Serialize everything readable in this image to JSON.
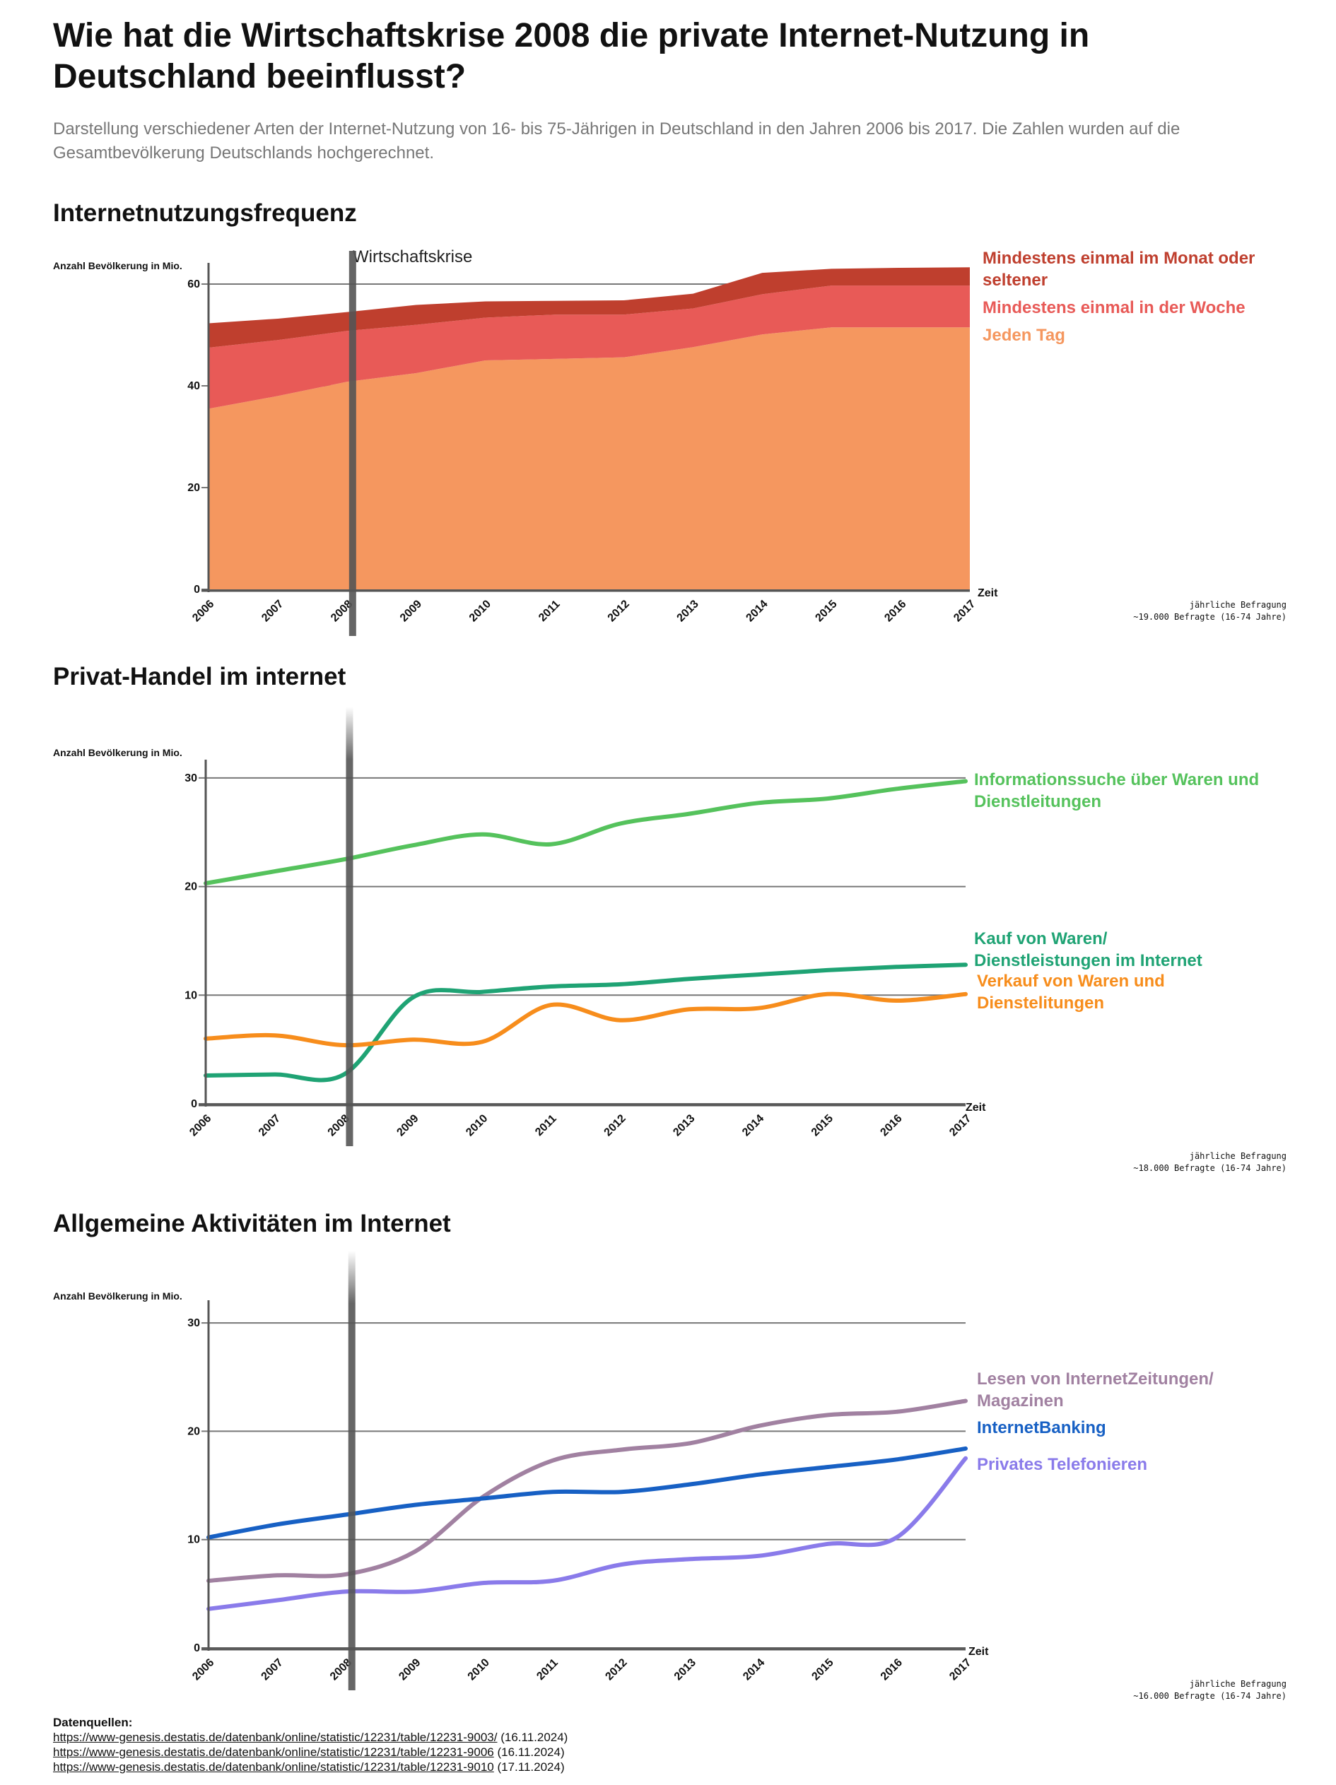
{
  "header": {
    "title": "Wie hat die Wirtschaftskrise 2008 die private Internet-Nutzung in Deutschland beeinflusst?",
    "subtitle": "Darstellung verschiedener Arten der Internet-Nutzung von 16- bis 75-Jährigen in Deutschland in den Jahren 2006 bis 2017. Die Zahlen wurden auf die Gesamtbevölkerung Deutschlands hochgerechnet."
  },
  "crisis": {
    "label": "Wirtschaftskrise",
    "year": 2008,
    "color": "#555555"
  },
  "chart_data": [
    {
      "type": "area",
      "title": "Internetnutzungsfrequenz",
      "ylabel": "Anzahl Bevölkerung in Mio.",
      "xlabel": "Zeit",
      "x": [
        2006,
        2007,
        2008,
        2009,
        2010,
        2011,
        2012,
        2013,
        2014,
        2015,
        2016,
        2017
      ],
      "ylim": [
        0,
        65
      ],
      "yticks": [
        0,
        20,
        40,
        60
      ],
      "grid": true,
      "stacked": true,
      "series": [
        {
          "name": "Jeden Tag",
          "color": "#f5975f",
          "values": [
            35.5,
            38,
            40.8,
            42.5,
            45,
            45.3,
            45.6,
            47.6,
            50.1,
            51.5,
            51.5,
            51.5
          ]
        },
        {
          "name": "Mindestens einmal in der Woche",
          "color": "#e85a57",
          "values": [
            12,
            11,
            10,
            9.5,
            8.4,
            8.7,
            8.4,
            7.6,
            7.9,
            8.2,
            8.2,
            8.2
          ]
        },
        {
          "name": "Mindestens einmal im Monat oder seltener",
          "color": "#bf3f2e",
          "values": [
            4.8,
            4.2,
            3.7,
            3.9,
            3.2,
            2.7,
            2.8,
            2.9,
            4.2,
            3.3,
            3.5,
            3.6
          ]
        }
      ],
      "note": [
        "jährliche Befragung",
        "~19.000 Befragte (16-74 Jahre)"
      ]
    },
    {
      "type": "line",
      "title": "Privat-Handel im internet",
      "ylabel": "Anzahl Bevölkerung in Mio.",
      "xlabel": "Zeit",
      "x": [
        2006,
        2007,
        2008,
        2009,
        2010,
        2011,
        2012,
        2013,
        2014,
        2015,
        2016,
        2017
      ],
      "ylim": [
        0,
        30
      ],
      "yticks": [
        0,
        10,
        20,
        30
      ],
      "grid": true,
      "series": [
        {
          "name": "Informationssuche über Waren und Dienstleitungen",
          "color": "#55c25c",
          "values": [
            20.3,
            21.4,
            22.5,
            23.8,
            24.8,
            23.9,
            25.8,
            26.7,
            27.7,
            28.1,
            29,
            29.7
          ]
        },
        {
          "name": "Kauf von Waren/ Dienstleistungen im Internet",
          "color": "#1fa374",
          "values": [
            2.6,
            2.7,
            2.7,
            9.8,
            10.3,
            10.8,
            11,
            11.5,
            11.9,
            12.3,
            12.6,
            12.8
          ]
        },
        {
          "name": "Verkauf von Waren und Dienstelitungen",
          "color": "#f78d1c",
          "values": [
            6,
            6.3,
            5.4,
            5.9,
            5.7,
            9.1,
            7.7,
            8.7,
            8.8,
            10.1,
            9.5,
            10.1
          ]
        }
      ],
      "note": [
        "jährliche Befragung",
        "~18.000 Befragte (16-74 Jahre)"
      ]
    },
    {
      "type": "line",
      "title": "Allgemeine Aktivitäten im Internet",
      "ylabel": "Anzahl Bevölkerung in Mio.",
      "xlabel": "Zeit",
      "x": [
        2006,
        2007,
        2008,
        2009,
        2010,
        2011,
        2012,
        2013,
        2014,
        2015,
        2016,
        2017
      ],
      "ylim": [
        0,
        30
      ],
      "yticks": [
        0,
        10,
        20,
        30
      ],
      "grid": true,
      "series": [
        {
          "name": "Lesen von InternetZeitungen/ Magazinen",
          "color": "#a181a1",
          "values": [
            6.2,
            6.7,
            6.8,
            8.9,
            14,
            17.3,
            18.3,
            18.9,
            20.5,
            21.5,
            21.8,
            22.8
          ]
        },
        {
          "name": "InternetBanking",
          "color": "#1760c4",
          "values": [
            10.2,
            11.4,
            12.3,
            13.2,
            13.8,
            14.4,
            14.4,
            15.1,
            16,
            16.7,
            17.4,
            18.4
          ]
        },
        {
          "name": "Privates Telefonieren",
          "color": "#8a7bea",
          "values": [
            3.6,
            4.4,
            5.2,
            5.2,
            6,
            6.2,
            7.7,
            8.2,
            8.5,
            9.6,
            10.2,
            17.5
          ]
        }
      ],
      "note": [
        "jährliche Befragung",
        "~16.000 Befragte (16-74 Jahre)"
      ]
    }
  ],
  "sources": {
    "title": "Datenquellen:",
    "items": [
      {
        "url": "https://www-genesis.destatis.de/datenbank/online/statistic/12231/table/12231-9003/",
        "date": "(16.11.2024)"
      },
      {
        "url": "https://www-genesis.destatis.de/datenbank/online/statistic/12231/table/12231-9006",
        "date": "(16.11.2024)"
      },
      {
        "url": "https://www-genesis.destatis.de/datenbank/online/statistic/12231/table/12231-9010",
        "date": "(17.11.2024)"
      }
    ]
  }
}
